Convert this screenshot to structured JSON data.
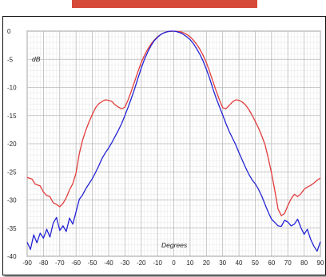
{
  "banner_color": "#d64a3a",
  "chart_data": {
    "type": "line",
    "title": "",
    "xlabel": "Degrees",
    "ylabel": "dB",
    "xlim": [
      -90,
      90
    ],
    "ylim": [
      -40,
      0
    ],
    "x_ticks": [
      -90,
      -80,
      -70,
      -60,
      -50,
      -40,
      -30,
      -20,
      -10,
      0,
      10,
      20,
      30,
      40,
      50,
      60,
      70,
      80,
      90
    ],
    "y_ticks": [
      0,
      -5,
      -10,
      -15,
      -20,
      -25,
      -30,
      -35,
      -40
    ],
    "grid": true,
    "legend": "none",
    "series": [
      {
        "color": "#e23b3b",
        "x": [
          -90,
          -87,
          -85,
          -82,
          -80,
          -78,
          -76,
          -74,
          -72,
          -70,
          -68,
          -66,
          -64,
          -62,
          -60,
          -58,
          -56,
          -54,
          -52,
          -50,
          -48,
          -46,
          -44,
          -42,
          -40,
          -38,
          -36,
          -34,
          -32,
          -30,
          -28,
          -26,
          -24,
          -22,
          -20,
          -18,
          -16,
          -14,
          -12,
          -10,
          -8,
          -6,
          -4,
          -2,
          0,
          2,
          4,
          6,
          8,
          10,
          12,
          14,
          16,
          18,
          20,
          22,
          24,
          26,
          28,
          30,
          32,
          34,
          36,
          38,
          40,
          42,
          44,
          46,
          48,
          50,
          52,
          54,
          56,
          58,
          60,
          62,
          64,
          66,
          68,
          70,
          72,
          74,
          76,
          78,
          80,
          82,
          84,
          86,
          88,
          90
        ],
        "values": [
          -26,
          -26.3,
          -27.2,
          -27.5,
          -28.6,
          -29.2,
          -29.4,
          -30.5,
          -30.8,
          -31.2,
          -30.6,
          -29.6,
          -28.2,
          -27.1,
          -25.2,
          -21.8,
          -19.4,
          -17.6,
          -16.1,
          -14.8,
          -13.6,
          -12.9,
          -12.5,
          -12.2,
          -12.3,
          -12.5,
          -13.1,
          -13.5,
          -13.8,
          -13.5,
          -12.2,
          -10.6,
          -8.9,
          -7.2,
          -5.6,
          -4.3,
          -3.2,
          -2.3,
          -1.6,
          -1.0,
          -0.6,
          -0.3,
          -0.1,
          -0.05,
          0,
          -0.05,
          -0.1,
          -0.3,
          -0.6,
          -1.0,
          -1.6,
          -2.3,
          -3.2,
          -4.3,
          -5.6,
          -7.2,
          -8.9,
          -10.6,
          -12.2,
          -13.6,
          -13.8,
          -13.2,
          -12.6,
          -12.2,
          -12.3,
          -12.6,
          -13.1,
          -13.9,
          -14.9,
          -16.0,
          -17.2,
          -18.6,
          -20.2,
          -22.6,
          -25.2,
          -28.3,
          -31.6,
          -32.8,
          -32.4,
          -31.0,
          -29.8,
          -29.0,
          -29.4,
          -28.9,
          -28.1,
          -27.7,
          -27.4,
          -27.0,
          -26.5,
          -26.1
        ]
      },
      {
        "color": "#2323d6",
        "x": [
          -90,
          -88,
          -86,
          -84,
          -82,
          -80,
          -78,
          -76,
          -74,
          -72,
          -70,
          -68,
          -66,
          -64,
          -62,
          -60,
          -58,
          -56,
          -54,
          -52,
          -50,
          -48,
          -46,
          -44,
          -42,
          -40,
          -38,
          -36,
          -34,
          -32,
          -30,
          -28,
          -26,
          -24,
          -22,
          -20,
          -18,
          -16,
          -14,
          -12,
          -10,
          -8,
          -6,
          -4,
          -2,
          0,
          2,
          4,
          6,
          8,
          10,
          12,
          14,
          16,
          18,
          20,
          22,
          24,
          26,
          28,
          30,
          32,
          34,
          36,
          38,
          40,
          42,
          44,
          46,
          48,
          50,
          52,
          54,
          56,
          58,
          60,
          62,
          64,
          66,
          68,
          70,
          72,
          74,
          76,
          78,
          80,
          82,
          84,
          86,
          88,
          90
        ],
        "values": [
          -37.5,
          -38.8,
          -36.2,
          -37.6,
          -35.9,
          -36.8,
          -35.2,
          -36.6,
          -34.1,
          -33.1,
          -35.4,
          -34.6,
          -35.6,
          -33.2,
          -34.3,
          -32.1,
          -29.9,
          -29.1,
          -28.0,
          -27.1,
          -26.2,
          -25.1,
          -23.9,
          -22.6,
          -21.6,
          -20.8,
          -19.8,
          -18.7,
          -17.6,
          -16.4,
          -15.0,
          -13.5,
          -11.9,
          -10.2,
          -8.4,
          -6.6,
          -5.0,
          -3.7,
          -2.6,
          -1.7,
          -1.1,
          -0.6,
          -0.3,
          -0.1,
          0,
          0,
          -0.1,
          -0.3,
          -0.6,
          -1.0,
          -1.5,
          -2.2,
          -3.1,
          -4.1,
          -5.3,
          -6.8,
          -8.4,
          -10.2,
          -11.9,
          -13.4,
          -14.9,
          -16.4,
          -17.8,
          -19.0,
          -20.2,
          -21.6,
          -22.9,
          -24.2,
          -25.4,
          -26.4,
          -27.1,
          -28.1,
          -29.3,
          -30.8,
          -32.2,
          -33.4,
          -34.0,
          -34.6,
          -34.7,
          -33.6,
          -33.9,
          -34.6,
          -34.3,
          -33.4,
          -34.9,
          -36.1,
          -35.2,
          -37.0,
          -38.2,
          -39.1,
          -37.4
        ]
      }
    ]
  }
}
